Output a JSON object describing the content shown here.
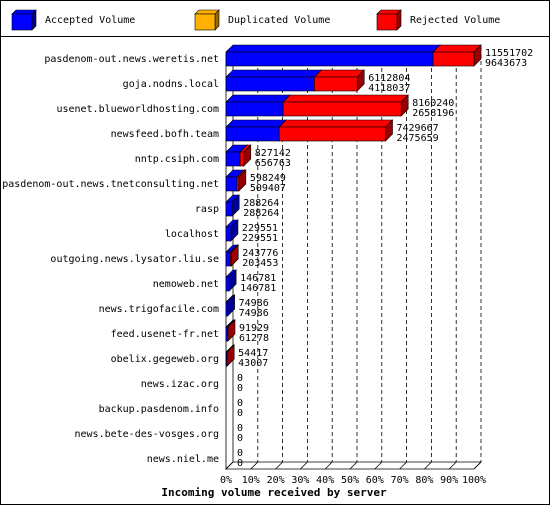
{
  "chart_data": {
    "type": "bar3d-horizontal-stacked",
    "x_label": "Incoming volume received by server",
    "categories": [
      "pasdenom-out.news.weretis.net",
      "goja.nodns.local",
      "usenet.blueworldhosting.com",
      "newsfeed.bofh.team",
      "nntp.csiph.com",
      "pasdenom-out.news.tnetconsulting.net",
      "rasp",
      "localhost",
      "outgoing.news.lysator.liu.se",
      "nemoweb.net",
      "news.trigofacile.com",
      "feed.usenet-fr.net",
      "obelix.gegeweb.org",
      "news.izac.org",
      "backup.pasdenom.info",
      "news.bete-des-vosges.org",
      "news.niel.me"
    ],
    "totals": [
      11551702,
      6112804,
      8160240,
      7429667,
      827142,
      598249,
      288264,
      229551,
      243776,
      146781,
      74986,
      91929,
      54417,
      0,
      0,
      0,
      0
    ],
    "series": [
      {
        "name": "Accepted Volume",
        "color": "#0000ff",
        "values": [
          9643673,
          4118037,
          2658196,
          2475659,
          656763,
          509407,
          288264,
          229551,
          203453,
          146781,
          74986,
          61278,
          43007,
          0,
          0,
          0,
          0
        ]
      },
      {
        "name": "Duplicated Volume",
        "color": "#ffb000",
        "values": [
          0,
          0,
          0,
          0,
          0,
          0,
          0,
          0,
          0,
          0,
          0,
          0,
          0,
          0,
          0,
          0,
          0
        ]
      },
      {
        "name": "Rejected Volume",
        "color": "#ff0000",
        "values": [
          1908029,
          1994767,
          5502044,
          4954008,
          170379,
          88842,
          0,
          0,
          40323,
          0,
          0,
          30651,
          11410,
          0,
          0,
          0,
          0
        ]
      }
    ],
    "xlim": [
      0,
      11551702
    ],
    "xticks": [
      {
        "value": 0,
        "label": "0%"
      },
      {
        "value": 1155170.2,
        "label": "10%"
      },
      {
        "value": 2310340.4,
        "label": "20%"
      },
      {
        "value": 3465510.6,
        "label": "30%"
      },
      {
        "value": 4620680.8,
        "label": "40%"
      },
      {
        "value": 5775851,
        "label": "50%"
      },
      {
        "value": 6931021.2,
        "label": "60%"
      },
      {
        "value": 8086191.4,
        "label": "70%"
      },
      {
        "value": 9241361.6,
        "label": "80%"
      },
      {
        "value": 10396531.8,
        "label": "90%"
      },
      {
        "value": 11551702,
        "label": "100%"
      }
    ],
    "grid": true
  }
}
